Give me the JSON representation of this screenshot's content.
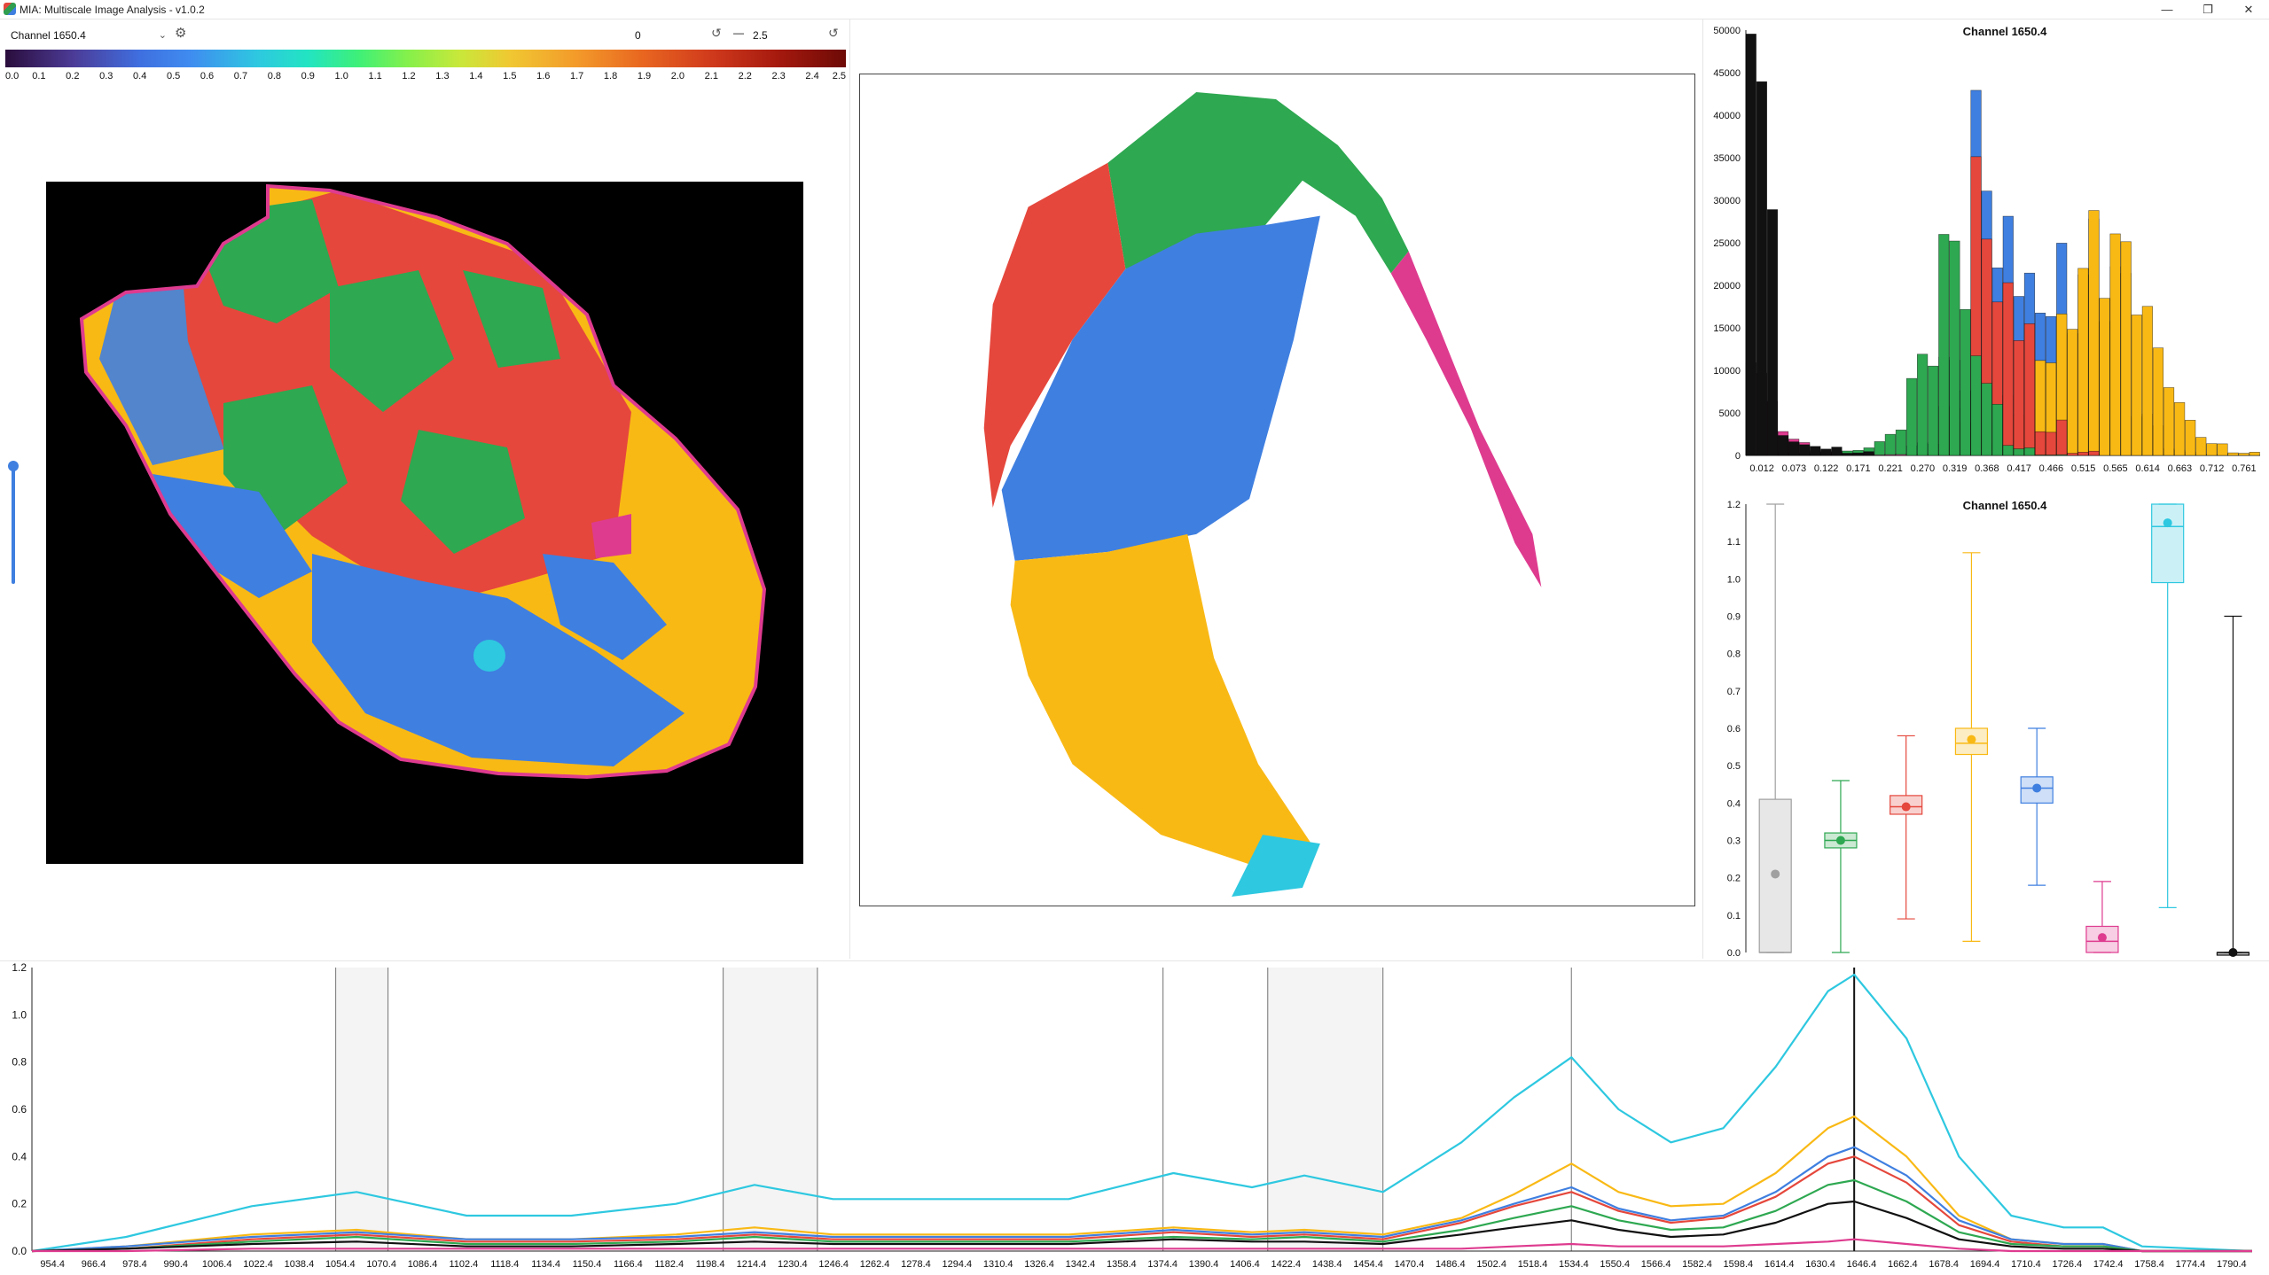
{
  "window": {
    "title": "MIA: Multiscale Image Analysis - v1.0.2",
    "minimize_glyph": "—",
    "maximize_glyph": "❐",
    "close_glyph": "✕"
  },
  "toolbar": {
    "channel_selected": "Channel 1650.4",
    "range_min": "0",
    "range_dash": "—",
    "range_max": "2.5",
    "settings_icon": "gear-icon",
    "reset_icon": "reset-icon"
  },
  "colormap": {
    "ticks": [
      "0.0",
      "0.1",
      "0.2",
      "0.3",
      "0.4",
      "0.5",
      "0.6",
      "0.7",
      "0.8",
      "0.9",
      "1.0",
      "1.1",
      "1.2",
      "1.3",
      "1.4",
      "1.5",
      "1.6",
      "1.7",
      "1.8",
      "1.9",
      "2.0",
      "2.1",
      "2.2",
      "2.3",
      "2.4",
      "2.5"
    ]
  },
  "cluster_colors": {
    "gray": "#a0a0a0",
    "green": "#2ea851",
    "red": "#e5473c",
    "yellow": "#f9b915",
    "blue": "#3f7fe0",
    "magenta": "#de3b8f",
    "cyan": "#2ec8e0",
    "black": "#111111"
  },
  "histogram": {
    "title": "Channel 1650.4",
    "y_ticks": [
      "0",
      "5000",
      "10000",
      "15000",
      "20000",
      "25000",
      "30000",
      "35000",
      "40000",
      "45000",
      "50000"
    ],
    "x_ticks": [
      "0.012",
      "0.073",
      "0.122",
      "0.171",
      "0.221",
      "0.270",
      "0.319",
      "0.368",
      "0.417",
      "0.466",
      "0.515",
      "0.565",
      "0.614",
      "0.663",
      "0.712",
      "0.761"
    ]
  },
  "boxplot": {
    "title": "Channel 1650.4",
    "y_ticks": [
      "0.0",
      "0.1",
      "0.2",
      "0.3",
      "0.4",
      "0.5",
      "0.6",
      "0.7",
      "0.8",
      "0.9",
      "1.0",
      "1.1",
      "1.2"
    ]
  },
  "spectrum": {
    "y_ticks": [
      "0.0",
      "0.2",
      "0.4",
      "0.6",
      "0.8",
      "1.0",
      "1.2"
    ],
    "x_ticks": [
      "954.4",
      "966.4",
      "978.4",
      "990.4",
      "1006.4",
      "1022.4",
      "1038.4",
      "1054.4",
      "1070.4",
      "1086.4",
      "1102.4",
      "1118.4",
      "1134.4",
      "1150.4",
      "1166.4",
      "1182.4",
      "1198.4",
      "1214.4",
      "1230.4",
      "1246.4",
      "1262.4",
      "1278.4",
      "1294.4",
      "1310.4",
      "1326.4",
      "1342.4",
      "1358.4",
      "1374.4",
      "1390.4",
      "1406.4",
      "1422.4",
      "1438.4",
      "1454.4",
      "1470.4",
      "1486.4",
      "1502.4",
      "1518.4",
      "1534.4",
      "1550.4",
      "1566.4",
      "1582.4",
      "1598.4",
      "1614.4",
      "1630.4",
      "1646.4",
      "1662.4",
      "1678.4",
      "1694.4",
      "1710.4",
      "1726.4",
      "1742.4",
      "1758.4",
      "1774.4",
      "1790.4"
    ]
  },
  "chart_data": [
    {
      "type": "bar",
      "title": "Channel 1650.4",
      "xlabel": "",
      "ylabel": "",
      "ylim": [
        0,
        50000
      ],
      "x": [
        "0.012",
        "0.073",
        "0.122",
        "0.171",
        "0.221",
        "0.270",
        "0.319",
        "0.368",
        "0.417",
        "0.466",
        "0.515",
        "0.565",
        "0.614",
        "0.663",
        "0.712",
        "0.761"
      ],
      "series": [
        {
          "color": "#3f7fe0",
          "values": [
            0,
            0,
            0,
            0,
            200,
            1500,
            12000,
            44000,
            36000,
            30000,
            28000,
            23000,
            5000,
            800,
            200,
            0
          ]
        },
        {
          "color": "#f9b915",
          "values": [
            0,
            0,
            0,
            0,
            0,
            0,
            300,
            2500,
            9000,
            20000,
            29000,
            27000,
            18000,
            8000,
            2500,
            500
          ]
        },
        {
          "color": "#e5473c",
          "values": [
            0,
            0,
            0,
            0,
            0,
            200,
            6000,
            36000,
            26000,
            5000,
            500,
            0,
            0,
            0,
            0,
            0
          ]
        },
        {
          "color": "#2ea851",
          "values": [
            0,
            400,
            600,
            1000,
            3000,
            12000,
            27000,
            12000,
            1500,
            100,
            0,
            0,
            0,
            0,
            0,
            0
          ]
        },
        {
          "color": "#de3b8f",
          "values": [
            11000,
            3000,
            800,
            300,
            100,
            0,
            0,
            0,
            0,
            0,
            0,
            0,
            0,
            0,
            0,
            0
          ]
        },
        {
          "color": "#111111",
          "values": [
            50000,
            2500,
            1500,
            500,
            0,
            0,
            0,
            0,
            0,
            0,
            0,
            0,
            0,
            0,
            0,
            0
          ]
        }
      ]
    },
    {
      "type": "box",
      "title": "Channel 1650.4",
      "ylim": [
        0,
        1.2
      ],
      "boxes": [
        {
          "color": "#a0a0a0",
          "min": 0.0,
          "q1": 0.0,
          "median": 0.0,
          "q3": 0.41,
          "max": 1.2,
          "mean": 0.21
        },
        {
          "color": "#2ea851",
          "min": 0.0,
          "q1": 0.28,
          "median": 0.3,
          "q3": 0.32,
          "max": 0.46,
          "mean": 0.3
        },
        {
          "color": "#e5473c",
          "min": 0.09,
          "q1": 0.37,
          "median": 0.39,
          "q3": 0.42,
          "max": 0.58,
          "mean": 0.39
        },
        {
          "color": "#f9b915",
          "min": 0.03,
          "q1": 0.53,
          "median": 0.56,
          "q3": 0.6,
          "max": 1.07,
          "mean": 0.57
        },
        {
          "color": "#3f7fe0",
          "min": 0.18,
          "q1": 0.4,
          "median": 0.44,
          "q3": 0.47,
          "max": 0.6,
          "mean": 0.44
        },
        {
          "color": "#de3b8f",
          "min": 0.0,
          "q1": 0.0,
          "median": 0.03,
          "q3": 0.07,
          "max": 0.19,
          "mean": 0.04
        },
        {
          "color": "#2ec8e0",
          "min": 0.12,
          "q1": 0.99,
          "median": 1.14,
          "q3": 1.2,
          "max": 1.2,
          "mean": 1.15
        },
        {
          "color": "#111111",
          "min": 0.0,
          "q1": 0.0,
          "median": 0.0,
          "q3": 0.0,
          "max": 0.9,
          "mean": 0.0
        }
      ]
    },
    {
      "type": "line",
      "ylim": [
        0,
        1.2
      ],
      "xlim": [
        954.4,
        1802.4
      ],
      "highlight_bands": [
        [
          1070.4,
          1090.4
        ],
        [
          1218.4,
          1254.4
        ],
        [
          1386.4,
          1386.4
        ],
        [
          1426.4,
          1470.4
        ],
        [
          1542.4,
          1542.4
        ]
      ],
      "marker_x": 1650.4,
      "x": [
        954.4,
        990.4,
        1038.4,
        1078.4,
        1120.4,
        1160.4,
        1200.4,
        1230.4,
        1260.4,
        1300.4,
        1350.4,
        1390.4,
        1420.4,
        1440.4,
        1470.4,
        1500.4,
        1520.4,
        1542.4,
        1560.4,
        1580.4,
        1600.4,
        1620.4,
        1640.4,
        1650.4,
        1670.4,
        1690.4,
        1710.4,
        1730.4,
        1745.4,
        1760.4,
        1802.4
      ],
      "series": [
        {
          "color": "#2ec8e0",
          "values": [
            0,
            0.06,
            0.19,
            0.25,
            0.15,
            0.15,
            0.2,
            0.28,
            0.22,
            0.22,
            0.22,
            0.33,
            0.27,
            0.32,
            0.25,
            0.46,
            0.65,
            0.82,
            0.6,
            0.46,
            0.52,
            0.78,
            1.1,
            1.17,
            0.9,
            0.4,
            0.15,
            0.1,
            0.1,
            0.02,
            0
          ]
        },
        {
          "color": "#f9b915",
          "values": [
            0,
            0.02,
            0.07,
            0.09,
            0.05,
            0.05,
            0.07,
            0.1,
            0.07,
            0.07,
            0.07,
            0.1,
            0.08,
            0.09,
            0.07,
            0.14,
            0.24,
            0.37,
            0.25,
            0.19,
            0.2,
            0.33,
            0.52,
            0.57,
            0.4,
            0.15,
            0.05,
            0.03,
            0.03,
            0,
            0
          ]
        },
        {
          "color": "#3f7fe0",
          "values": [
            0,
            0.02,
            0.06,
            0.08,
            0.05,
            0.05,
            0.06,
            0.08,
            0.06,
            0.06,
            0.06,
            0.09,
            0.07,
            0.08,
            0.06,
            0.13,
            0.2,
            0.27,
            0.18,
            0.13,
            0.15,
            0.25,
            0.4,
            0.44,
            0.32,
            0.13,
            0.05,
            0.03,
            0.03,
            0,
            0
          ]
        },
        {
          "color": "#e5473c",
          "values": [
            0,
            0.01,
            0.05,
            0.07,
            0.04,
            0.04,
            0.05,
            0.07,
            0.05,
            0.05,
            0.05,
            0.08,
            0.06,
            0.07,
            0.05,
            0.12,
            0.19,
            0.25,
            0.17,
            0.12,
            0.14,
            0.23,
            0.37,
            0.4,
            0.29,
            0.11,
            0.04,
            0.02,
            0.02,
            0,
            0
          ]
        },
        {
          "color": "#2ea851",
          "values": [
            0,
            0.01,
            0.04,
            0.06,
            0.03,
            0.03,
            0.04,
            0.06,
            0.04,
            0.04,
            0.04,
            0.06,
            0.05,
            0.06,
            0.04,
            0.09,
            0.14,
            0.19,
            0.13,
            0.09,
            0.1,
            0.17,
            0.28,
            0.3,
            0.21,
            0.08,
            0.03,
            0.02,
            0.02,
            0,
            0
          ]
        },
        {
          "color": "#111111",
          "values": [
            0,
            0.01,
            0.03,
            0.04,
            0.02,
            0.02,
            0.03,
            0.04,
            0.03,
            0.03,
            0.03,
            0.05,
            0.04,
            0.04,
            0.03,
            0.07,
            0.1,
            0.13,
            0.09,
            0.06,
            0.07,
            0.12,
            0.2,
            0.21,
            0.14,
            0.05,
            0.02,
            0.01,
            0.01,
            0,
            0
          ]
        },
        {
          "color": "#de3b8f",
          "values": [
            0,
            0,
            0.01,
            0.01,
            0.01,
            0.01,
            0.01,
            0.01,
            0.01,
            0.01,
            0.01,
            0.01,
            0.01,
            0.01,
            0.01,
            0.01,
            0.02,
            0.03,
            0.02,
            0.02,
            0.02,
            0.03,
            0.04,
            0.05,
            0.03,
            0.01,
            0,
            0,
            0,
            0,
            0
          ]
        }
      ]
    }
  ]
}
